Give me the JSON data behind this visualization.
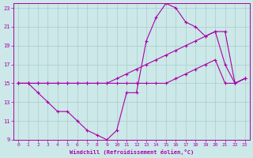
{
  "xlabel": "Windchill (Refroidissement éolien,°C)",
  "background_color": "#cce8e8",
  "grid_color": "#aacccc",
  "line_color": "#aa00aa",
  "xlim": [
    -0.5,
    23.5
  ],
  "ylim": [
    9,
    23.5
  ],
  "xticks": [
    0,
    1,
    2,
    3,
    4,
    5,
    6,
    7,
    8,
    9,
    10,
    11,
    12,
    13,
    14,
    15,
    16,
    17,
    18,
    19,
    20,
    21,
    22,
    23
  ],
  "yticks": [
    9,
    11,
    13,
    15,
    17,
    19,
    21,
    23
  ],
  "series": [
    {
      "x": [
        0,
        1,
        2,
        3,
        4,
        5,
        6,
        7,
        8,
        9,
        10,
        11,
        12,
        13,
        14,
        15,
        16,
        17,
        18,
        19,
        20,
        21,
        22,
        23
      ],
      "y": [
        15,
        15,
        15,
        15,
        15,
        15,
        15,
        15,
        15,
        15,
        15,
        15,
        15,
        15,
        15,
        15,
        15.5,
        16,
        16.5,
        17,
        17.5,
        15,
        15,
        15.5
      ]
    },
    {
      "x": [
        0,
        1,
        2,
        3,
        4,
        5,
        6,
        7,
        8,
        9,
        10,
        11,
        12,
        13,
        14,
        15,
        16,
        17,
        18,
        19,
        20,
        21,
        22,
        23
      ],
      "y": [
        15,
        15,
        15,
        15,
        15,
        15,
        15,
        15,
        15,
        15,
        15.5,
        16,
        16.5,
        17,
        17.5,
        18,
        18.5,
        19,
        19.5,
        20,
        20.5,
        20.5,
        15,
        15.5
      ]
    },
    {
      "x": [
        0,
        1,
        2,
        3,
        4,
        5,
        6,
        7,
        8,
        9,
        10,
        11,
        12,
        13,
        14,
        15,
        16,
        17,
        18,
        19,
        20,
        21,
        22,
        23
      ],
      "y": [
        15,
        15,
        14,
        13,
        12,
        12,
        11,
        10,
        9.5,
        9,
        10,
        14,
        14,
        19.5,
        22,
        23.5,
        23,
        21.5,
        21,
        20,
        20.5,
        17,
        15,
        15.5
      ]
    }
  ]
}
